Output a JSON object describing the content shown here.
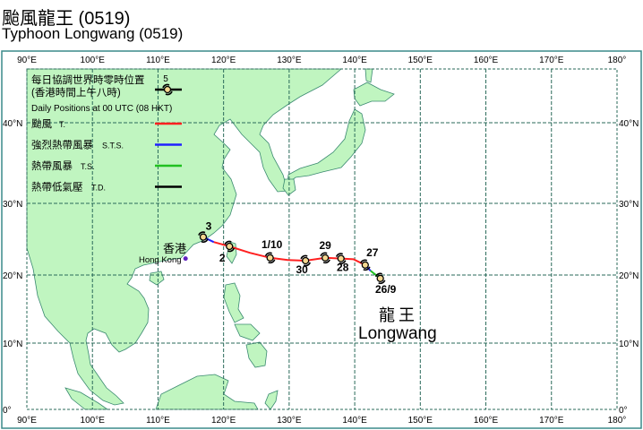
{
  "title_zh": "颱風龍王 (0519)",
  "title_en": "Typhoon Longwang (0519)",
  "axes": {
    "lon_labels": [
      "90°E",
      "100°E",
      "110°E",
      "120°E",
      "130°E",
      "140°E",
      "150°E",
      "160°E",
      "170°E",
      "180°"
    ],
    "lon_values": [
      90,
      100,
      110,
      120,
      130,
      140,
      150,
      160,
      170,
      180
    ],
    "lat_labels": [
      "0°",
      "10°N",
      "20°N",
      "30°N",
      "40°N"
    ],
    "lat_values": [
      0,
      10,
      20,
      30,
      40
    ]
  },
  "legend": {
    "header_zh_1": "每日協調世界時零時位置",
    "header_zh_2": "(香港時間上午八時)",
    "header_en": "Daily Positions at 00 UTC (08 HKT)",
    "sample_day": "5",
    "items": [
      {
        "zh": "颱風",
        "en": "T.",
        "color": "#ff2020"
      },
      {
        "zh": "強烈熱帶風暴",
        "en": "S.T.S.",
        "color": "#2020ff"
      },
      {
        "zh": "熱帶風暴",
        "en": "T.S.",
        "color": "#20c020"
      },
      {
        "zh": "熱帶低氣壓",
        "en": "T.D.",
        "color": "#000000"
      }
    ]
  },
  "colors": {
    "land": "#c0f5c0",
    "coast": "#3a8a70",
    "grid": "#2a6a5a",
    "hk_dot": "#6020c0",
    "storm_fill": "#f5d890"
  },
  "hong_kong": {
    "zh": "香港",
    "en": "Hong Kong",
    "lon": 114.2,
    "lat": 22.3
  },
  "storm_name": {
    "zh": "龍王",
    "en": "Longwang"
  },
  "positions": [
    {
      "label": "26/9",
      "lon": 143.9,
      "lat": 19.5
    },
    {
      "label": "27",
      "lon": 141.6,
      "lat": 21.4
    },
    {
      "label": "28",
      "lon": 137.9,
      "lat": 22.3
    },
    {
      "label": "29",
      "lon": 135.5,
      "lat": 22.4
    },
    {
      "label": "30",
      "lon": 132.5,
      "lat": 22.0
    },
    {
      "label": "1/10",
      "lon": 127.1,
      "lat": 22.4
    },
    {
      "label": "2",
      "lon": 120.9,
      "lat": 24.0
    },
    {
      "label": "3",
      "lon": 116.9,
      "lat": 25.3
    }
  ],
  "track_segments": [
    {
      "intensity": "T.S.",
      "color": "#20c020",
      "points": [
        [
          143.9,
          19.5
        ],
        [
          142.4,
          20.6
        ]
      ]
    },
    {
      "intensity": "S.T.S.",
      "color": "#2020ff",
      "points": [
        [
          142.4,
          20.6
        ],
        [
          141.6,
          21.4
        ]
      ]
    },
    {
      "intensity": "T.",
      "color": "#ff2020",
      "points": [
        [
          141.6,
          21.4
        ],
        [
          139.8,
          22.2
        ],
        [
          137.9,
          22.3
        ],
        [
          135.5,
          22.4
        ],
        [
          132.5,
          22.0
        ],
        [
          129.8,
          22.1
        ],
        [
          127.1,
          22.4
        ],
        [
          124,
          23.1
        ],
        [
          120.9,
          24.0
        ],
        [
          118.5,
          24.6
        ]
      ]
    },
    {
      "intensity": "S.T.S.",
      "color": "#2020ff",
      "points": [
        [
          118.5,
          24.6
        ],
        [
          116.9,
          25.3
        ]
      ]
    }
  ]
}
